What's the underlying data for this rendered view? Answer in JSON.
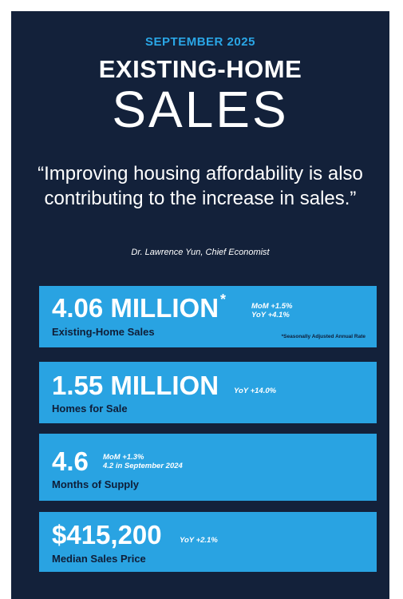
{
  "header": {
    "eyebrow": "SEPTEMBER 2025",
    "title_line1": "EXISTING-HOME",
    "title_line2": "SALES"
  },
  "quote": {
    "text": "“Improving housing affordability is also contributing to the increase in sales.”",
    "attribution": "Dr. Lawrence Yun, Chief Economist"
  },
  "stats": [
    {
      "value": "4.06 MILLION",
      "marker": "*",
      "label": "Existing-Home Sales",
      "notes": [
        "MoM +1.5%",
        "YoY +4.1%"
      ],
      "footnote": "*Seasonally Adjusted Annual Rate"
    },
    {
      "value": "1.55 MILLION",
      "label": "Homes for Sale",
      "notes": [
        "YoY +14.0%"
      ]
    },
    {
      "value": "4.6",
      "label": "Months of Supply",
      "notes": [
        "MoM +1.3%",
        "4.2 in September 2024"
      ]
    },
    {
      "value": "$415,200",
      "label": "Median Sales Price",
      "notes": [
        "YoY +2.1%"
      ]
    }
  ],
  "colors": {
    "background": "#13213a",
    "accent": "#29a3e2",
    "label_text": "#0f1e38"
  }
}
